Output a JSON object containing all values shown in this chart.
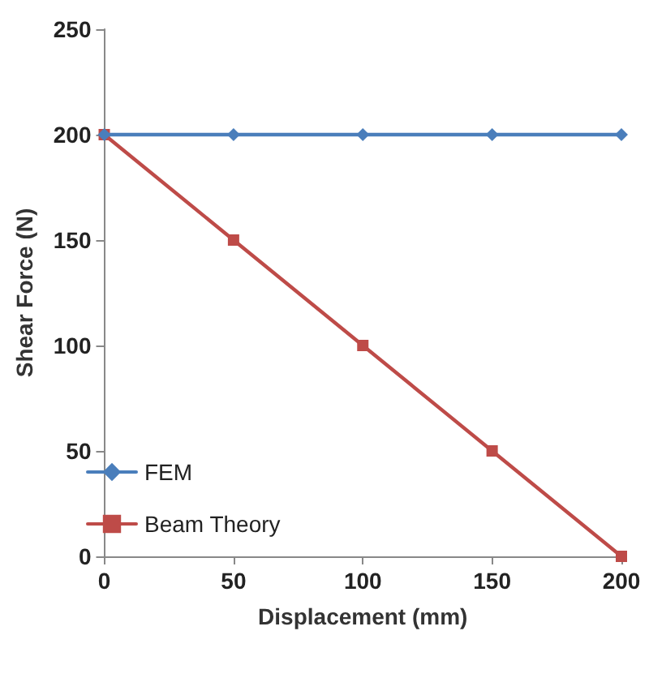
{
  "chart_data": {
    "type": "line",
    "xlabel": "Displacement (mm)",
    "ylabel": "Shear Force (N)",
    "x": [
      0,
      50,
      100,
      150,
      200
    ],
    "series": [
      {
        "name": "FEM",
        "color": "#4a7ebb",
        "marker": "diamond",
        "values": [
          200,
          200,
          200,
          200,
          200
        ]
      },
      {
        "name": "Beam Theory",
        "color": "#be4b48",
        "marker": "square",
        "values": [
          200,
          150,
          100,
          50,
          0
        ]
      }
    ],
    "xlim": [
      0,
      200
    ],
    "xticks": [
      0,
      50,
      100,
      150,
      200
    ],
    "ylim": [
      0,
      250
    ],
    "yticks": [
      0,
      50,
      100,
      150,
      200,
      250
    ],
    "grid": false,
    "legend": "bottom left",
    "line_style": "solid"
  }
}
